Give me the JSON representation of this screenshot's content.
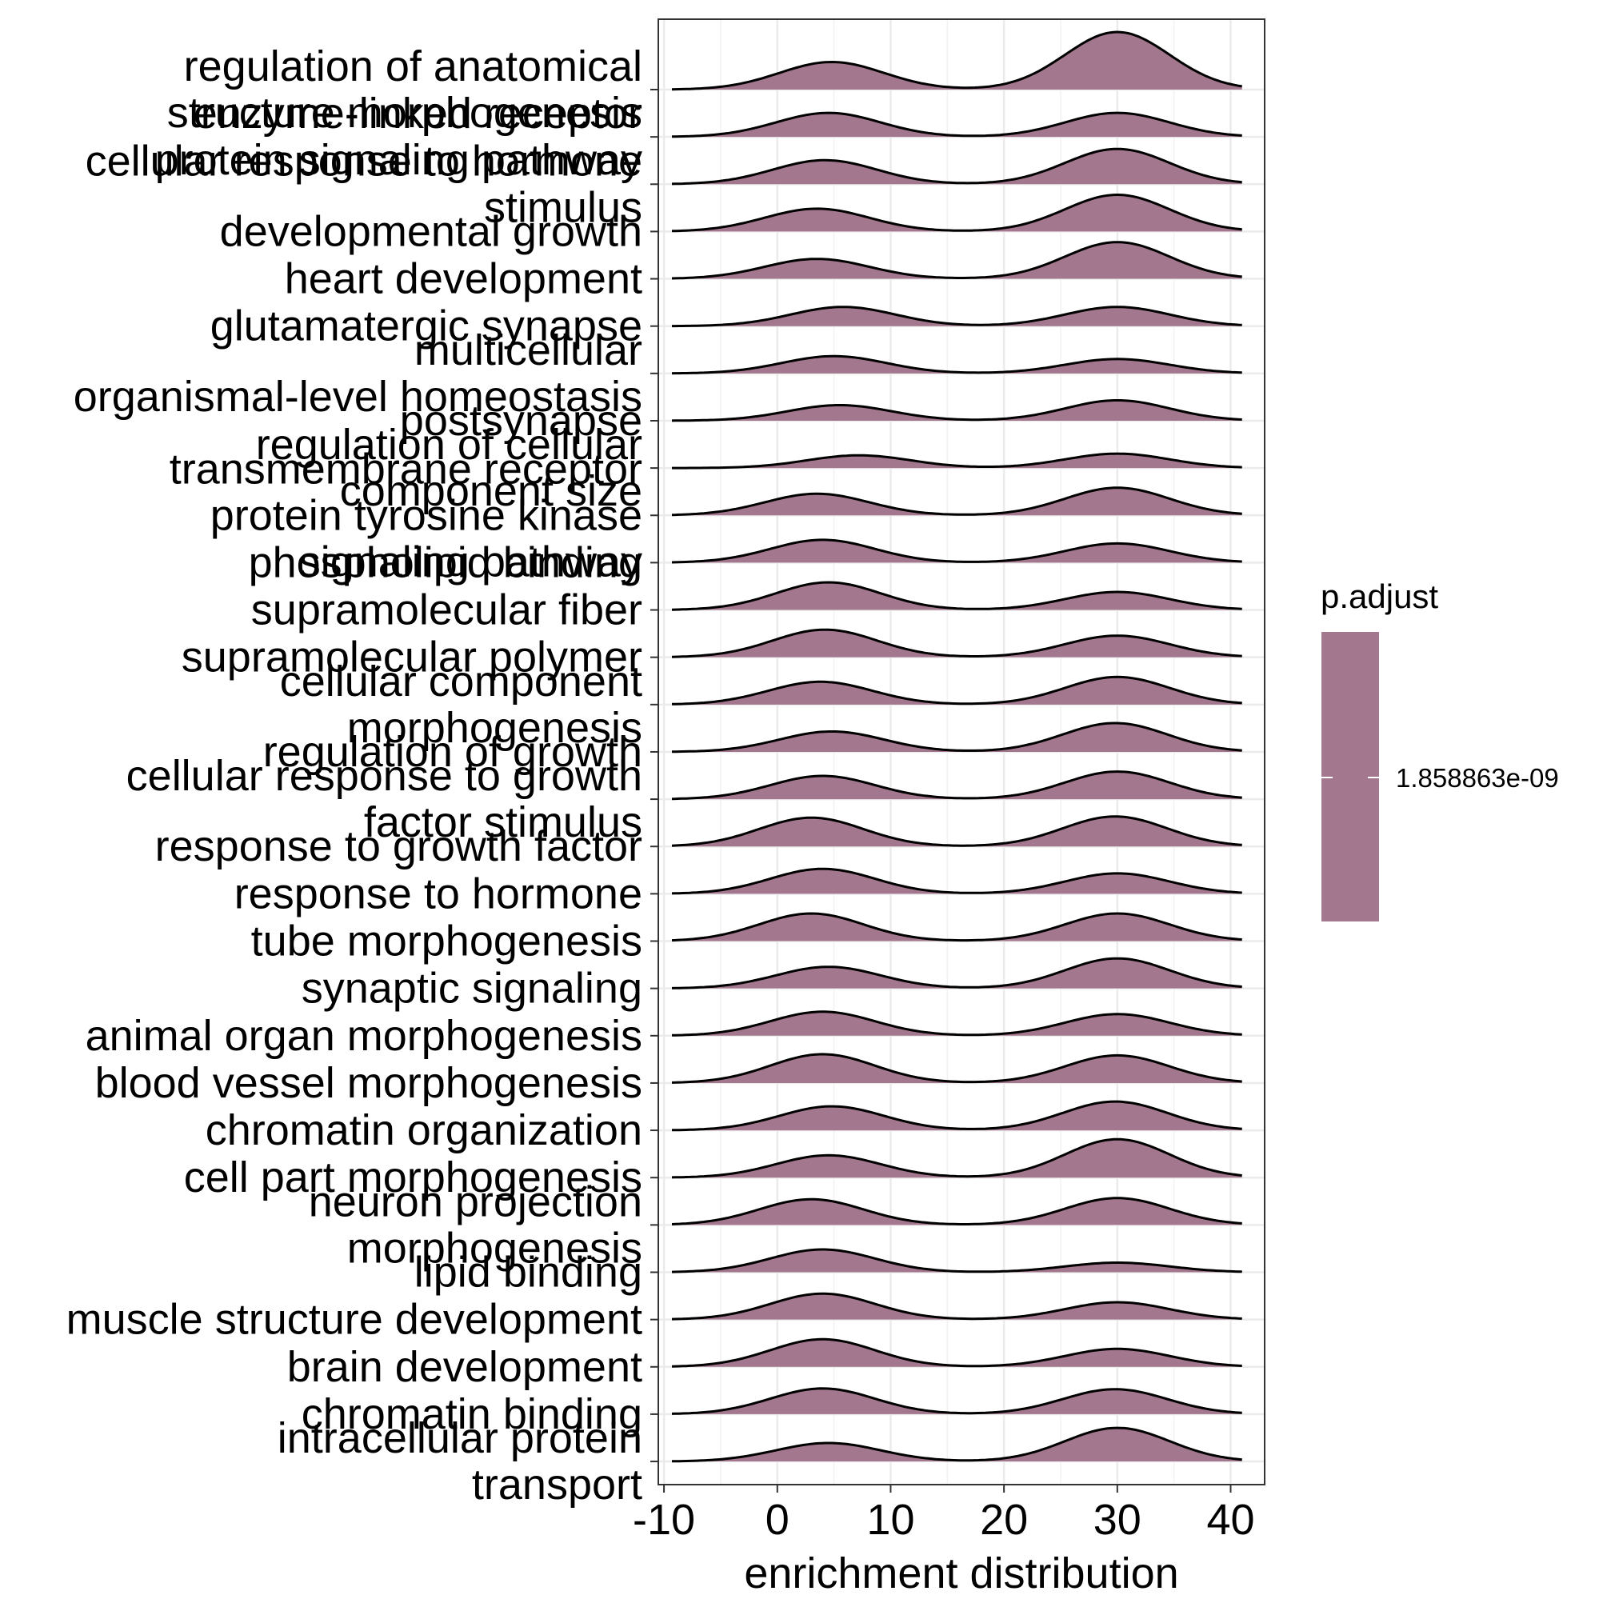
{
  "chart_data": {
    "type": "ridgeline",
    "xlabel": "enrichment distribution",
    "ylabel": "",
    "xlim": [
      -10.5,
      43
    ],
    "xticks": [
      -10,
      0,
      10,
      20,
      30,
      40
    ],
    "grid": true,
    "fill_color": "#a3778d",
    "legend": {
      "title": "p.adjust",
      "placement": "right",
      "label": "1.858863e-09"
    },
    "categories": [
      [
        "regulation of anatomical",
        "structure morphogenesis"
      ],
      [
        "enzyme-linked receptor",
        "protein signaling pathway"
      ],
      [
        "cellular response to hormone",
        "stimulus"
      ],
      [
        "developmental growth"
      ],
      [
        "heart development"
      ],
      [
        "glutamatergic synapse"
      ],
      [
        "multicellular",
        "organismal-level homeostasis"
      ],
      [
        "postsynapse"
      ],
      [
        "regulation of cellular",
        "component size"
      ],
      [
        "transmembrane receptor",
        "protein tyrosine kinase",
        "signaling pathway"
      ],
      [
        "phospholipid binding"
      ],
      [
        "supramolecular fiber"
      ],
      [
        "supramolecular polymer"
      ],
      [
        "cellular component",
        "morphogenesis"
      ],
      [
        "regulation of growth"
      ],
      [
        "cellular response to growth",
        "factor stimulus"
      ],
      [
        "response to growth factor"
      ],
      [
        "response to hormone"
      ],
      [
        "tube morphogenesis"
      ],
      [
        "synaptic signaling"
      ],
      [
        "animal organ morphogenesis"
      ],
      [
        "blood vessel morphogenesis"
      ],
      [
        "chromatin organization"
      ],
      [
        "cell part morphogenesis"
      ],
      [
        "neuron projection",
        "morphogenesis"
      ],
      [
        "lipid binding"
      ],
      [
        "muscle structure development"
      ],
      [
        "brain development"
      ],
      [
        "chromatin binding"
      ],
      [
        "intracellular protein",
        "transport"
      ]
    ],
    "series": [
      {
        "left_peak": 4.8,
        "left_height": 1.15,
        "right_peak": 30.0,
        "right_height": 2.4,
        "x_range": [
          -9.3,
          41
        ]
      },
      {
        "left_peak": 4.5,
        "left_height": 1.0,
        "right_peak": 30.0,
        "right_height": 1.0,
        "x_range": [
          -9.3,
          41
        ]
      },
      {
        "left_peak": 4.2,
        "left_height": 1.0,
        "right_peak": 30.0,
        "right_height": 1.47,
        "x_range": [
          -9.3,
          41
        ]
      },
      {
        "left_peak": 3.5,
        "left_height": 0.95,
        "right_peak": 30.0,
        "right_height": 1.53,
        "x_range": [
          -9.3,
          41
        ]
      },
      {
        "left_peak": 3.5,
        "left_height": 0.83,
        "right_peak": 30.0,
        "right_height": 1.53,
        "x_range": [
          -9.3,
          41
        ]
      },
      {
        "left_peak": 5.8,
        "left_height": 0.8,
        "right_peak": 30.0,
        "right_height": 0.8,
        "x_range": [
          -9.3,
          41
        ]
      },
      {
        "left_peak": 5.0,
        "left_height": 0.72,
        "right_peak": 30.0,
        "right_height": 0.6,
        "x_range": [
          -9.3,
          41
        ]
      },
      {
        "left_peak": 5.5,
        "left_height": 0.65,
        "right_peak": 30.0,
        "right_height": 0.85,
        "x_range": [
          -9.3,
          41
        ]
      },
      {
        "left_peak": 7.2,
        "left_height": 0.53,
        "right_peak": 30.0,
        "right_height": 0.6,
        "x_range": [
          -9.3,
          41
        ]
      },
      {
        "left_peak": 3.5,
        "left_height": 0.9,
        "right_peak": 30.0,
        "right_height": 1.15,
        "x_range": [
          -9.3,
          41
        ]
      },
      {
        "left_peak": 4.0,
        "left_height": 0.95,
        "right_peak": 30.0,
        "right_height": 0.8,
        "x_range": [
          -9.3,
          41
        ]
      },
      {
        "left_peak": 4.5,
        "left_height": 1.15,
        "right_peak": 30.0,
        "right_height": 0.75,
        "x_range": [
          -9.3,
          41
        ]
      },
      {
        "left_peak": 4.2,
        "left_height": 1.15,
        "right_peak": 30.0,
        "right_height": 0.9,
        "x_range": [
          -9.3,
          41
        ]
      },
      {
        "left_peak": 3.8,
        "left_height": 0.95,
        "right_peak": 30.0,
        "right_height": 1.15,
        "x_range": [
          -9.3,
          41
        ]
      },
      {
        "left_peak": 4.8,
        "left_height": 0.85,
        "right_peak": 29.8,
        "right_height": 1.2,
        "x_range": [
          -9.3,
          41
        ]
      },
      {
        "left_peak": 4.0,
        "left_height": 0.97,
        "right_peak": 30.0,
        "right_height": 1.15,
        "x_range": [
          -9.3,
          41
        ]
      },
      {
        "left_peak": 3.0,
        "left_height": 1.2,
        "right_peak": 29.8,
        "right_height": 1.25,
        "x_range": [
          -9.3,
          41
        ]
      },
      {
        "left_peak": 4.0,
        "left_height": 1.04,
        "right_peak": 30.0,
        "right_height": 0.85,
        "x_range": [
          -9.3,
          41
        ]
      },
      {
        "left_peak": 3.0,
        "left_height": 1.15,
        "right_peak": 30.0,
        "right_height": 1.15,
        "x_range": [
          -9.3,
          41
        ]
      },
      {
        "left_peak": 4.5,
        "left_height": 0.9,
        "right_peak": 30.0,
        "right_height": 1.25,
        "x_range": [
          -9.3,
          41
        ]
      },
      {
        "left_peak": 4.0,
        "left_height": 1.0,
        "right_peak": 30.0,
        "right_height": 0.9,
        "x_range": [
          -9.3,
          41
        ]
      },
      {
        "left_peak": 4.0,
        "left_height": 1.2,
        "right_peak": 30.0,
        "right_height": 1.15,
        "x_range": [
          -9.3,
          41
        ]
      },
      {
        "left_peak": 4.8,
        "left_height": 1.0,
        "right_peak": 29.8,
        "right_height": 1.2,
        "x_range": [
          -9.3,
          41
        ]
      },
      {
        "left_peak": 4.5,
        "left_height": 0.93,
        "right_peak": 30.0,
        "right_height": 1.6,
        "x_range": [
          -9.3,
          41
        ]
      },
      {
        "left_peak": 3.0,
        "left_height": 1.07,
        "right_peak": 30.0,
        "right_height": 1.12,
        "x_range": [
          -9.3,
          41
        ]
      },
      {
        "left_peak": 4.0,
        "left_height": 0.95,
        "right_peak": 30.0,
        "right_height": 0.4,
        "x_range": [
          -9.3,
          41
        ]
      },
      {
        "left_peak": 4.0,
        "left_height": 1.08,
        "right_peak": 30.0,
        "right_height": 0.72,
        "x_range": [
          -9.3,
          41
        ]
      },
      {
        "left_peak": 4.0,
        "left_height": 1.15,
        "right_peak": 30.0,
        "right_height": 0.75,
        "x_range": [
          -9.3,
          41
        ]
      },
      {
        "left_peak": 4.0,
        "left_height": 1.07,
        "right_peak": 29.8,
        "right_height": 1.04,
        "x_range": [
          -9.3,
          41
        ]
      },
      {
        "left_peak": 4.5,
        "left_height": 0.77,
        "right_peak": 30.0,
        "right_height": 1.4,
        "x_range": [
          -9.3,
          41
        ]
      }
    ]
  }
}
